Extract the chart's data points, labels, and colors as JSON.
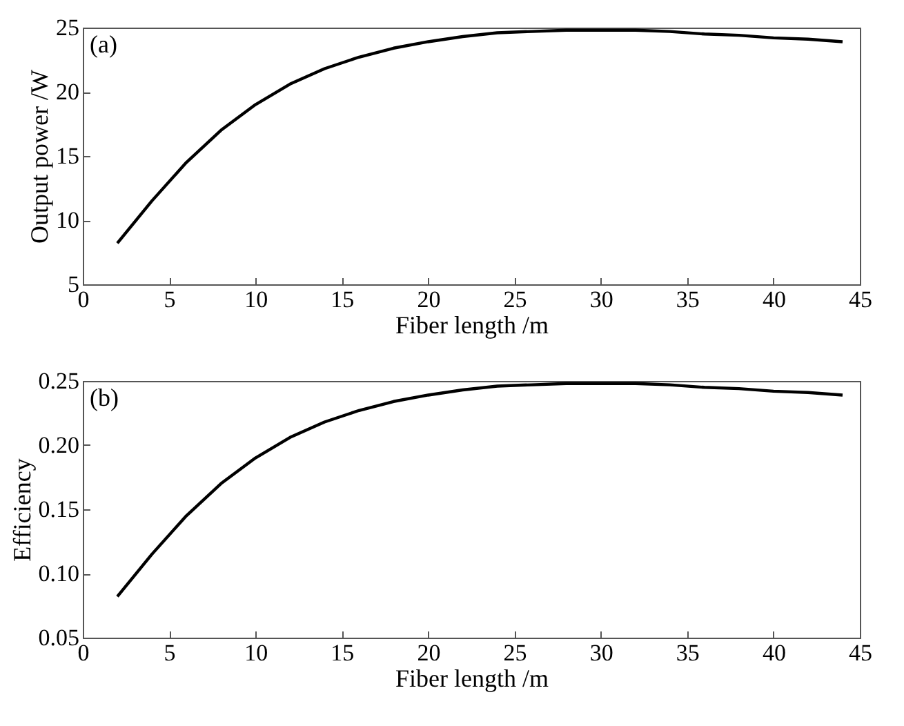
{
  "chart_data": [
    {
      "type": "line",
      "annotations": [
        "(a)"
      ],
      "xlabel": "Fiber length /m",
      "ylabel": "Output power /W",
      "xlim": [
        0,
        45
      ],
      "xticks": [
        0,
        5,
        10,
        15,
        20,
        25,
        30,
        35,
        40,
        45
      ],
      "ylim": [
        5,
        25
      ],
      "yticks": [
        5,
        10,
        15,
        20,
        25
      ],
      "x": [
        2,
        4,
        6,
        8,
        10,
        12,
        14,
        16,
        18,
        20,
        22,
        24,
        26,
        28,
        30,
        32,
        34,
        36,
        38,
        40,
        42,
        44
      ],
      "series": [
        {
          "color": "#000000",
          "values": [
            8.2,
            11.5,
            14.5,
            17.0,
            19.0,
            20.6,
            21.8,
            22.7,
            23.4,
            23.9,
            24.3,
            24.6,
            24.7,
            24.8,
            24.8,
            24.8,
            24.7,
            24.5,
            24.4,
            24.2,
            24.1,
            23.9
          ]
        }
      ]
    },
    {
      "type": "line",
      "annotations": [
        "(b)"
      ],
      "xlabel": "Fiber length /m",
      "ylabel": "Efficiency",
      "xlim": [
        0,
        45
      ],
      "xticks": [
        0,
        5,
        10,
        15,
        20,
        25,
        30,
        35,
        40,
        45
      ],
      "ylim": [
        0.05,
        0.25
      ],
      "yticks": [
        {
          "value": 0.05,
          "label": "0.05"
        },
        {
          "value": 0.1,
          "label": "0.10"
        },
        {
          "value": 0.15,
          "label": "0.15"
        },
        {
          "value": 0.2,
          "label": "0.20"
        },
        {
          "value": 0.25,
          "label": "0.25"
        }
      ],
      "x": [
        2,
        4,
        6,
        8,
        10,
        12,
        14,
        16,
        18,
        20,
        22,
        24,
        26,
        28,
        30,
        32,
        34,
        36,
        38,
        40,
        42,
        44
      ],
      "series": [
        {
          "color": "#000000",
          "values": [
            0.082,
            0.115,
            0.145,
            0.17,
            0.19,
            0.206,
            0.218,
            0.227,
            0.234,
            0.239,
            0.243,
            0.246,
            0.247,
            0.248,
            0.248,
            0.248,
            0.247,
            0.245,
            0.244,
            0.242,
            0.241,
            0.239
          ]
        }
      ]
    }
  ]
}
